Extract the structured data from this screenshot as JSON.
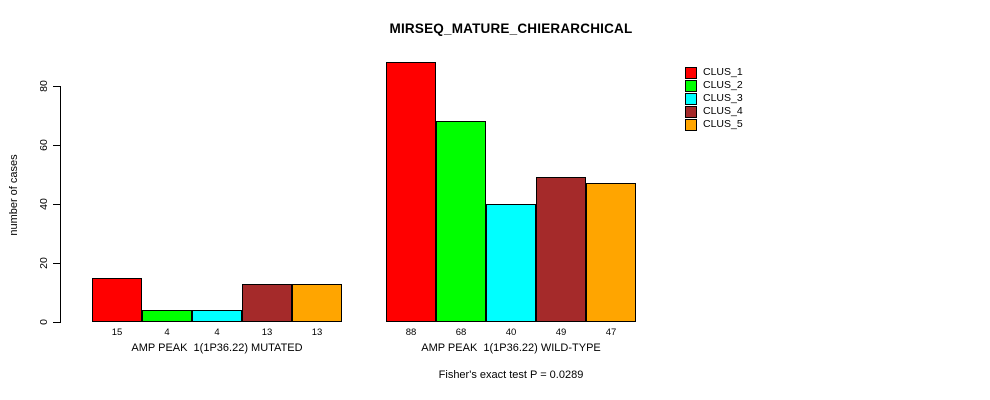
{
  "chart_data": {
    "type": "bar",
    "title": "MIRSEQ_MATURE_CHIERARCHICAL",
    "ylabel": "number of cases",
    "xlabel": "",
    "yticks": [
      0,
      20,
      40,
      60,
      80
    ],
    "ylim": [
      0,
      88
    ],
    "grid": false,
    "legend_position": "top-right",
    "series": [
      "CLUS_1",
      "CLUS_2",
      "CLUS_3",
      "CLUS_4",
      "CLUS_5"
    ],
    "colors": [
      "#ff0000",
      "#00ff00",
      "#00ffff",
      "#a52a2a",
      "#ffa500"
    ],
    "groups": [
      {
        "label": "AMP PEAK  1(1P36.22) MUTATED",
        "values": [
          15,
          4,
          4,
          13,
          13
        ]
      },
      {
        "label": "AMP PEAK  1(1P36.22) WILD-TYPE",
        "values": [
          88,
          68,
          40,
          49,
          47
        ]
      }
    ],
    "footnote": "Fisher's exact test P = 0.0289"
  }
}
